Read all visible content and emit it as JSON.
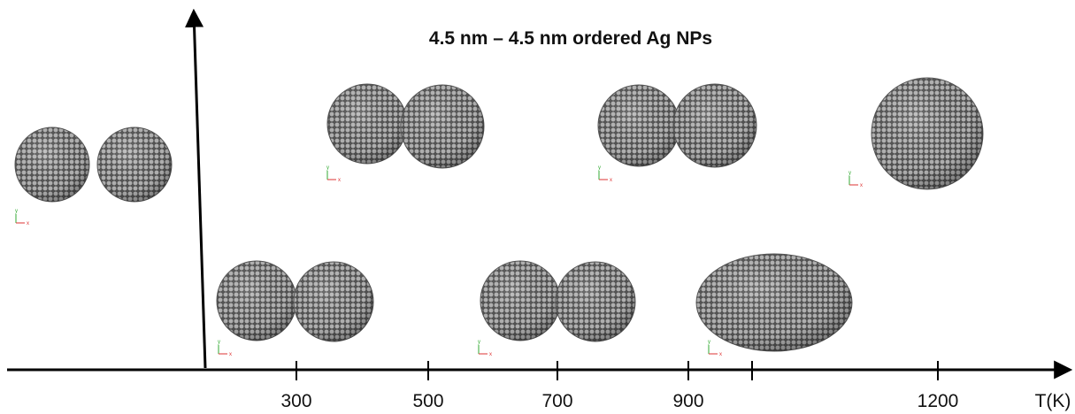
{
  "title": "4.5 nm – 4.5 nm ordered Ag NPs",
  "axis": {
    "label": "T(K)",
    "ticks": [
      "300",
      "500",
      "700",
      "900",
      "1200"
    ]
  },
  "triad": {
    "y": "y",
    "x": "x"
  }
}
